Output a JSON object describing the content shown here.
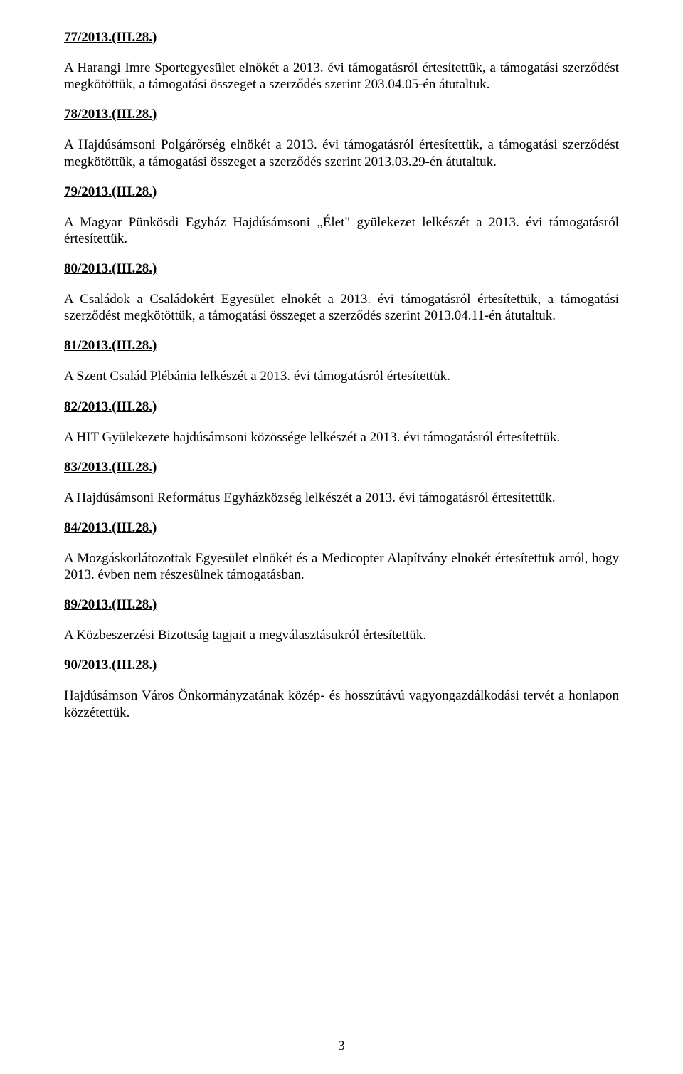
{
  "entries": [
    {
      "heading": "77/2013.(III.28.)",
      "body": "A Harangi Imre Sportegyesület elnökét a 2013. évi támogatásról értesítettük, a támogatási szerződést megkötöttük, a támogatási összeget a szerződés szerint 203.04.05-én átutaltuk."
    },
    {
      "heading": "78/2013.(III.28.)",
      "body": "A Hajdúsámsoni Polgárőrség elnökét a 2013. évi támogatásról értesítettük, a támogatási szerződést megkötöttük, a támogatási összeget a szerződés szerint 2013.03.29-én átutaltuk."
    },
    {
      "heading": "79/2013.(III.28.)",
      "body": "A Magyar Pünkösdi Egyház Hajdúsámsoni „Élet\" gyülekezet lelkészét a 2013. évi támogatásról értesítettük."
    },
    {
      "heading": "80/2013.(III.28.)",
      "body": "A Családok a Családokért Egyesület elnökét a 2013. évi támogatásról értesítettük, a támogatási szerződést megkötöttük, a támogatási összeget a szerződés szerint 2013.04.11-én átutaltuk."
    },
    {
      "heading": "81/2013.(III.28.)",
      "body": "A Szent Család Plébánia lelkészét a 2013. évi támogatásról értesítettük."
    },
    {
      "heading": "82/2013.(III.28.)",
      "body": "A HIT Gyülekezete hajdúsámsoni közössége lelkészét a 2013. évi támogatásról értesítettük."
    },
    {
      "heading": "83/2013.(III.28.)",
      "body": "A Hajdúsámsoni Református Egyházközség lelkészét a 2013. évi támogatásról értesítettük."
    },
    {
      "heading": "84/2013.(III.28.)",
      "body": "A Mozgáskorlátozottak Egyesület elnökét és a Medicopter Alapítvány elnökét értesítettük arról, hogy 2013. évben nem részesülnek támogatásban."
    },
    {
      "heading": "89/2013.(III.28.)",
      "body": "A Közbeszerzési Bizottság tagjait a megválasztásukról értesítettük."
    },
    {
      "heading": "90/2013.(III.28.)",
      "body": "Hajdúsámson Város Önkormányzatának közép- és hosszútávú vagyongazdálkodási tervét a honlapon közzétettük."
    }
  ],
  "pageNumber": "3"
}
